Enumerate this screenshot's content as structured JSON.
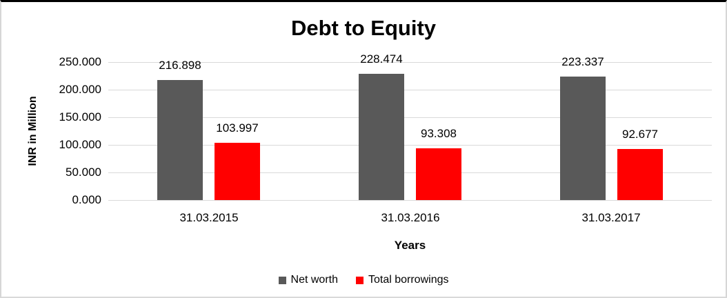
{
  "window": {
    "background": "#FFFFFF",
    "border_top_color": "#000000",
    "border_color": "#D9D9D9"
  },
  "chart_data": {
    "type": "bar",
    "title": "Debt to Equity",
    "xlabel": "Years",
    "ylabel": "INR in Million",
    "categories": [
      "31.03.2015",
      "31.03.2016",
      "31.03.2017"
    ],
    "series": [
      {
        "name": "Net worth",
        "color": "#595959",
        "values": [
          216.898,
          228.474,
          223.337
        ],
        "data_labels": [
          "216.898",
          "228.474",
          "223.337"
        ]
      },
      {
        "name": "Total borrowings",
        "color": "#FF0000",
        "values": [
          103.997,
          93.308,
          92.677
        ],
        "data_labels": [
          "103.997",
          "93.308",
          "92.677"
        ]
      }
    ],
    "ylim": [
      0,
      250
    ],
    "ytick_labels": [
      "250.000",
      "200.000",
      "150.000",
      "100.000",
      "50.000",
      "0.000"
    ],
    "grid": "horizontal",
    "gridline_color": "#D9D9D9",
    "legend_position": "bottom"
  }
}
